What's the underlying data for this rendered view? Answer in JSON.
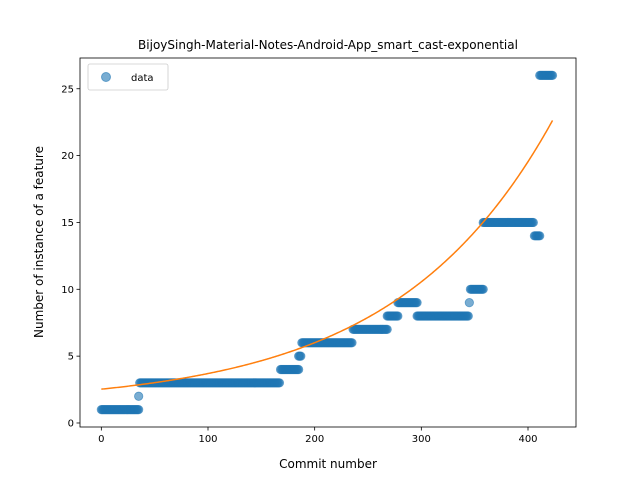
{
  "chart_data": {
    "type": "scatter",
    "title": "BijoySingh-Material-Notes-Android-App_smart_cast-exponential",
    "xlabel": "Commit number",
    "ylabel": "Number of instance of a feature",
    "xlim": [
      -20,
      445
    ],
    "ylim": [
      -0.3,
      27.3
    ],
    "xticks": [
      0,
      100,
      200,
      300,
      400
    ],
    "yticks": [
      0,
      5,
      10,
      15,
      20,
      25
    ],
    "grid": false,
    "legend": {
      "placement": "top-left",
      "entries": [
        "data"
      ]
    },
    "colors": {
      "points": "#1f77b4",
      "fit": "#ff7f0e"
    },
    "series": [
      {
        "name": "data",
        "kind": "scatter",
        "segments": [
          {
            "x_start": 0,
            "x_end": 35,
            "y": 1
          },
          {
            "x_start": 35,
            "x_end": 35,
            "y": 2
          },
          {
            "x_start": 36,
            "x_end": 167,
            "y": 3
          },
          {
            "x_start": 168,
            "x_end": 185,
            "y": 4
          },
          {
            "x_start": 185,
            "x_end": 187,
            "y": 5
          },
          {
            "x_start": 188,
            "x_end": 235,
            "y": 6
          },
          {
            "x_start": 236,
            "x_end": 268,
            "y": 7
          },
          {
            "x_start": 268,
            "x_end": 278,
            "y": 8
          },
          {
            "x_start": 278,
            "x_end": 296,
            "y": 9
          },
          {
            "x_start": 296,
            "x_end": 344,
            "y": 8
          },
          {
            "x_start": 345,
            "x_end": 345,
            "y": 9
          },
          {
            "x_start": 346,
            "x_end": 358,
            "y": 10
          },
          {
            "x_start": 358,
            "x_end": 405,
            "y": 15
          },
          {
            "x_start": 406,
            "x_end": 411,
            "y": 14
          },
          {
            "x_start": 411,
            "x_end": 423,
            "y": 26
          }
        ]
      },
      {
        "kind": "line",
        "model": "exponential",
        "x_range": [
          0,
          423
        ],
        "a": 1.2,
        "b": 0.0068,
        "c": 1.33
      }
    ]
  }
}
